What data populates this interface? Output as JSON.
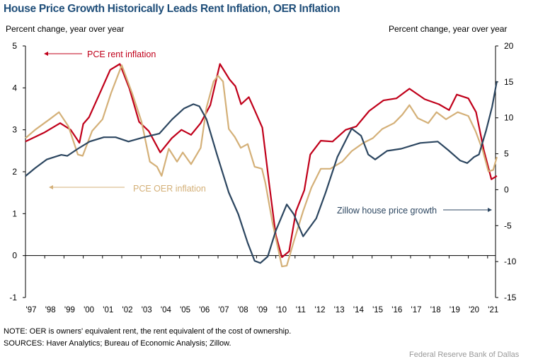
{
  "chart_data": {
    "type": "line",
    "title": "House Price Growth Historically Leads Rent Inflation, OER Inflation",
    "ylabel_left": "Percent change, year over year",
    "ylabel_right": "Percent change, year over year",
    "ylim_left": [
      -1,
      5
    ],
    "yticks_left": [
      -1,
      0,
      1,
      2,
      3,
      4,
      5
    ],
    "ylim_right": [
      -15,
      20
    ],
    "yticks_right": [
      -15,
      -10,
      -5,
      0,
      5,
      10,
      15,
      20
    ],
    "xlim": [
      1997,
      2021.5
    ],
    "xtick_labels": [
      "'97",
      "'98",
      "'99",
      "'00",
      "'01",
      "'02",
      "'03",
      "'04",
      "'05",
      "'06",
      "'07",
      "'08",
      "'09",
      "'10",
      "'11",
      "'12",
      "'13",
      "'14",
      "'15",
      "'16",
      "'17",
      "'18",
      "'19",
      "'20",
      "'21"
    ],
    "grid": false,
    "series": [
      {
        "name": "PCE rent inflation",
        "axis": "left",
        "color": "#c0001a",
        "x": [
          1997.0,
          1998.0,
          1998.8,
          1999.35,
          1999.8,
          2000.0,
          2000.3,
          2000.8,
          2001.4,
          2001.9,
          2002.4,
          2002.9,
          2003.4,
          2004.0,
          2004.6,
          2005.1,
          2005.6,
          2006.1,
          2006.6,
          2007.1,
          2007.6,
          2007.9,
          2008.2,
          2008.6,
          2008.9,
          2009.3,
          2009.65,
          2010.0,
          2010.32,
          2010.69,
          2011.05,
          2011.48,
          2011.79,
          2012.34,
          2012.95,
          2013.63,
          2014.18,
          2014.85,
          2015.59,
          2016.26,
          2016.94,
          2017.73,
          2018.47,
          2019.0,
          2019.4,
          2020.0,
          2020.4,
          2020.8,
          2021.2,
          2021.48
        ],
        "values": [
          2.72,
          2.94,
          3.16,
          3.0,
          2.69,
          3.14,
          3.3,
          3.81,
          4.43,
          4.57,
          3.98,
          3.19,
          2.97,
          2.46,
          2.8,
          3.0,
          2.88,
          3.16,
          3.59,
          4.57,
          4.2,
          4.04,
          3.61,
          3.78,
          3.47,
          3.05,
          1.73,
          0.49,
          -0.04,
          0.1,
          1.06,
          1.56,
          2.41,
          2.74,
          2.72,
          3.0,
          3.08,
          3.45,
          3.7,
          3.75,
          3.98,
          3.73,
          3.61,
          3.47,
          3.84,
          3.75,
          3.42,
          2.52,
          1.82,
          1.9
        ]
      },
      {
        "name": "PCE OER inflation",
        "axis": "left",
        "color": "#d4b078",
        "x": [
          1997.0,
          1997.5,
          1998.25,
          1998.74,
          1999.23,
          1999.72,
          1999.97,
          2000.46,
          2001.0,
          2001.44,
          2002.0,
          2002.54,
          2003.03,
          2003.46,
          2003.83,
          2004.07,
          2004.44,
          2004.87,
          2005.17,
          2005.6,
          2006.1,
          2006.4,
          2006.77,
          2007.0,
          2007.26,
          2007.56,
          2007.87,
          2008.18,
          2008.54,
          2008.9,
          2009.28,
          2009.46,
          2009.83,
          2010.32,
          2010.57,
          2010.93,
          2011.42,
          2011.85,
          2012.34,
          2012.83,
          2013.45,
          2013.94,
          2014.55,
          2015.04,
          2015.53,
          2016.14,
          2016.57,
          2016.94,
          2017.37,
          2017.92,
          2018.35,
          2018.84,
          2019.45,
          2020.0,
          2020.37,
          2020.74,
          2021.04,
          2021.29,
          2021.48
        ],
        "values": [
          2.8,
          3.0,
          3.25,
          3.42,
          3.08,
          2.41,
          2.38,
          2.97,
          3.25,
          3.87,
          4.54,
          3.87,
          3.19,
          2.24,
          2.12,
          1.9,
          2.55,
          2.24,
          2.46,
          2.18,
          2.57,
          3.53,
          4.15,
          4.29,
          4.15,
          3.02,
          2.83,
          2.57,
          2.66,
          2.12,
          2.07,
          1.73,
          0.78,
          -0.26,
          -0.24,
          0.33,
          1.06,
          1.62,
          2.07,
          2.07,
          2.24,
          2.49,
          2.69,
          2.8,
          3.02,
          3.16,
          3.36,
          3.59,
          3.28,
          3.16,
          3.42,
          3.25,
          3.42,
          3.33,
          2.97,
          2.52,
          2.01,
          2.04,
          2.35
        ]
      },
      {
        "name": "Zillow house price growth",
        "axis": "right",
        "color": "#2c4660",
        "x": [
          1997.0,
          1997.5,
          1998.1,
          1998.86,
          1999.17,
          1999.72,
          2000.33,
          2001.07,
          2001.68,
          2002.35,
          2003.15,
          2003.95,
          2004.62,
          2005.23,
          2005.72,
          2006.03,
          2006.4,
          2006.95,
          2007.56,
          2008.05,
          2008.54,
          2008.9,
          2009.2,
          2009.58,
          2010.0,
          2010.57,
          2010.93,
          2011.42,
          2012.1,
          2012.59,
          2013.2,
          2013.94,
          2014.43,
          2014.8,
          2015.16,
          2015.78,
          2016.51,
          2017.5,
          2018.41,
          2018.96,
          2019.57,
          2019.94,
          2020.3,
          2020.55,
          2020.92,
          2021.23,
          2021.48
        ],
        "values": [
          1.9,
          3.0,
          4.2,
          4.85,
          4.7,
          5.7,
          6.7,
          7.3,
          7.3,
          6.7,
          7.3,
          7.8,
          9.8,
          11.3,
          11.9,
          11.6,
          9.8,
          4.85,
          -0.4,
          -3.4,
          -7.4,
          -9.9,
          -10.2,
          -9.3,
          -5.7,
          -2.05,
          -3.4,
          -6.5,
          -4.0,
          -0.4,
          4.55,
          8.5,
          7.5,
          4.9,
          4.2,
          5.4,
          5.7,
          6.5,
          6.7,
          5.5,
          4.06,
          3.7,
          4.55,
          4.9,
          8.2,
          11.5,
          15.1
        ]
      }
    ],
    "annotations": [
      {
        "text": "PCE rent inflation",
        "points_to": "left axis",
        "series": 0
      },
      {
        "text": "PCE OER inflation",
        "points_to": "left axis",
        "series": 1
      },
      {
        "text": "Zillow house price growth",
        "points_to": "right axis",
        "series": 2
      }
    ]
  },
  "notes": {
    "note": "NOTE: OER is owners' equivalent rent, the rent equivalent of the cost of ownership.",
    "sources": "SOURCES: Haver Analytics; Bureau of Economic Analysis; Zillow.",
    "credit": "Federal Reserve Bank of Dallas"
  }
}
